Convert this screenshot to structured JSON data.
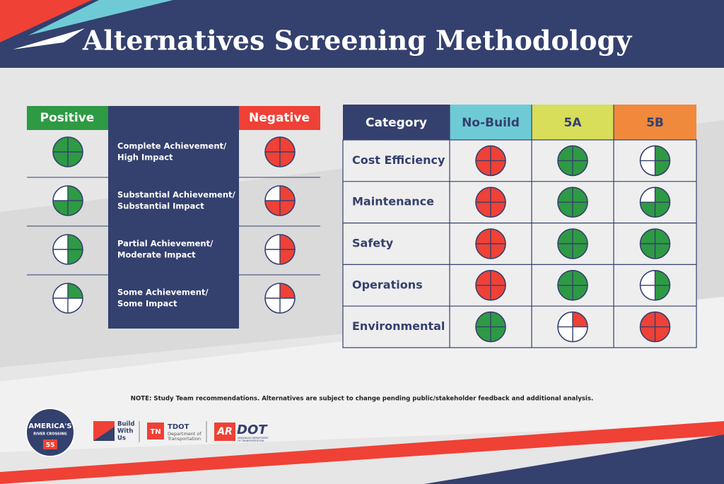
{
  "header": {
    "title": "Alternatives Screening Methodology"
  },
  "colors": {
    "positive": "#2e9a44",
    "negative": "#ef4136"
  },
  "legend": {
    "positive_label": "Positive",
    "negative_label": "Negative",
    "levels": [
      {
        "lines": [
          "Complete Achievement/",
          "High Impact"
        ],
        "quarters": 4
      },
      {
        "lines": [
          "Substantial Achievement/",
          "Substantial Impact"
        ],
        "quarters": 3
      },
      {
        "lines": [
          "Partial Achievement/",
          "Moderate Impact"
        ],
        "quarters": 2
      },
      {
        "lines": [
          "Some Achievement/",
          "Some Impact"
        ],
        "quarters": 1
      }
    ]
  },
  "table": {
    "headers": [
      "Category",
      "No-Build",
      "5A",
      "5B"
    ],
    "rows": [
      {
        "category": "Cost Efficiency",
        "ratings": [
          {
            "sentiment": "negative",
            "quarters": 4
          },
          {
            "sentiment": "positive",
            "quarters": 4
          },
          {
            "sentiment": "positive",
            "quarters": 2
          }
        ]
      },
      {
        "category": "Maintenance",
        "ratings": [
          {
            "sentiment": "negative",
            "quarters": 4
          },
          {
            "sentiment": "positive",
            "quarters": 4
          },
          {
            "sentiment": "positive",
            "quarters": 3
          }
        ]
      },
      {
        "category": "Safety",
        "ratings": [
          {
            "sentiment": "negative",
            "quarters": 4
          },
          {
            "sentiment": "positive",
            "quarters": 4
          },
          {
            "sentiment": "positive",
            "quarters": 4
          }
        ]
      },
      {
        "category": "Operations",
        "ratings": [
          {
            "sentiment": "negative",
            "quarters": 4
          },
          {
            "sentiment": "positive",
            "quarters": 4
          },
          {
            "sentiment": "positive",
            "quarters": 2
          }
        ]
      },
      {
        "category": "Environmental",
        "ratings": [
          {
            "sentiment": "positive",
            "quarters": 4
          },
          {
            "sentiment": "negative",
            "quarters": 1
          },
          {
            "sentiment": "negative",
            "quarters": 4
          }
        ]
      }
    ]
  },
  "note": "NOTE: Study Team recommendations. Alternatives are subject to change pending public/stakeholder feedback and additional analysis.",
  "logos": {
    "crossing": [
      "AMERICA'S",
      "RIVER CROSSING",
      "55"
    ],
    "build": [
      "Build",
      "With",
      "Us"
    ],
    "tdot": [
      "TN",
      "TDOT",
      "Department of",
      "Transportation"
    ],
    "ardot": [
      "AR",
      "DOT",
      "ARKANSAS DEPARTMENT",
      "OF TRANSPORTATION"
    ]
  }
}
